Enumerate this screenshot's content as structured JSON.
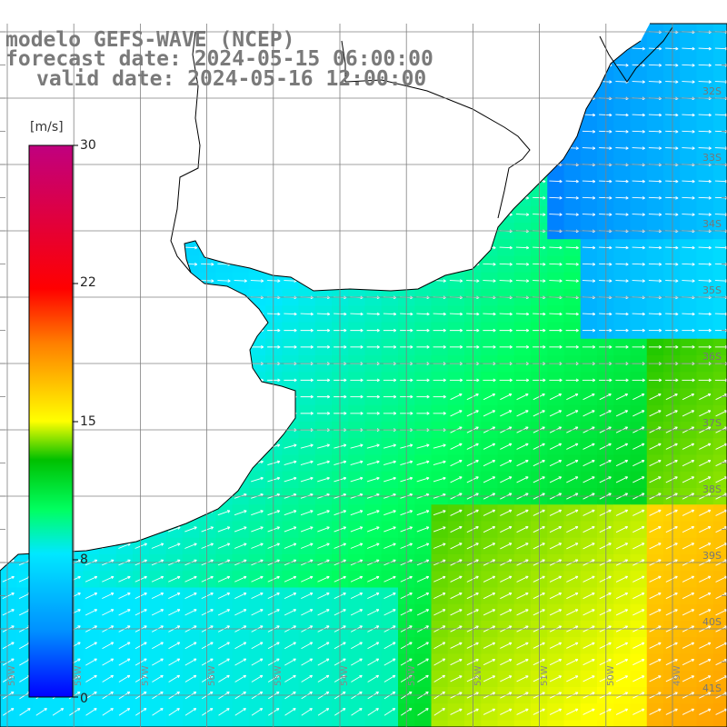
{
  "title": {
    "line1": "modelo GEFS-WAVE (NCEP)",
    "line2": "forecast date: 2024-05-15 06:00:00",
    "line3": "valid date: 2024-05-16 12:00:00"
  },
  "colorbar": {
    "unit": "[m/s]",
    "ticks": [
      "30",
      "22",
      "15",
      "8",
      "0"
    ],
    "colors": [
      "#0000ff",
      "#0090ff",
      "#00e8ff",
      "#00ff60",
      "#00c000",
      "#ffff00",
      "#ff8000",
      "#ff0000",
      "#c0007f"
    ]
  },
  "lat_labels": [
    "32S",
    "33S",
    "34S",
    "35S",
    "36S",
    "37S",
    "38S",
    "39S",
    "40S",
    "41S"
  ],
  "lon_labels": [
    "59W",
    "58W",
    "57W",
    "56W",
    "55W",
    "54W",
    "53W",
    "52W",
    "51W",
    "50W",
    "49W"
  ],
  "colors": {
    "land": "#ffffff",
    "grid": "#808080",
    "coast": "#000000",
    "title": "#7a7a7a"
  }
}
